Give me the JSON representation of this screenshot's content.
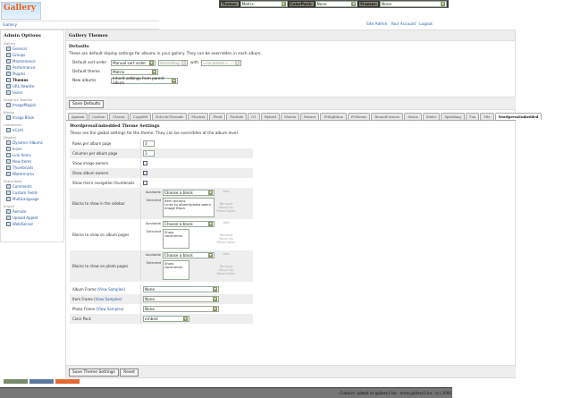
{
  "topbar": {
    "theme_label": "Theme:",
    "theme_value": "Matrix",
    "colorpack_label": "ColorPack:",
    "colorpack_value": "None",
    "frames_label": "Frames:",
    "frames_value": "None"
  },
  "logo_text": "Gallery",
  "breadcrumb": "Gallery",
  "user_links": [
    "Site Admin",
    "Your Account",
    "Logout"
  ],
  "sidebar": {
    "title": "Admin Options",
    "groups": [
      {
        "label": "Gallery",
        "items": [
          {
            "label": "General"
          },
          {
            "label": "Groups"
          },
          {
            "label": "Maintenance"
          },
          {
            "label": "Performance"
          },
          {
            "label": "Plugins"
          },
          {
            "label": "Themes",
            "current": true
          },
          {
            "label": "URL Rewrite"
          },
          {
            "label": "Users"
          }
        ]
      },
      {
        "label": "Graphics Toolkits",
        "items": [
          {
            "label": "ImageMagick"
          }
        ]
      },
      {
        "label": "Blocks",
        "items": [
          {
            "label": "Image Block"
          }
        ]
      },
      {
        "label": "Commerce",
        "items": [
          {
            "label": "eCard"
          }
        ]
      },
      {
        "label": "Display",
        "items": [
          {
            "label": "Dynamic Albums"
          },
          {
            "label": "Icons"
          },
          {
            "label": "Link Items"
          },
          {
            "label": "New Items"
          },
          {
            "label": "Thumbnails"
          },
          {
            "label": "Watermarks"
          }
        ]
      },
      {
        "label": "Extra Data",
        "items": [
          {
            "label": "Comments"
          },
          {
            "label": "Custom Fields"
          },
          {
            "label": "MultiLanguage"
          }
        ]
      },
      {
        "label": "Import",
        "items": [
          {
            "label": "Remote"
          },
          {
            "label": "Upload Applet"
          },
          {
            "label": "Web/Server"
          }
        ]
      }
    ]
  },
  "main": {
    "title": "Gallery Themes",
    "defaults": {
      "heading": "Defaults",
      "description": "These are default display settings for albums in your gallery. They can be overridden in each album.",
      "sort_label": "Default sort order",
      "sort_value": "Manual sort order",
      "sort_dir": "Ascending",
      "with_label": "with",
      "with_value": "« no preset »",
      "theme_label": "Default theme",
      "theme_value": "Matrix",
      "new_albums_label": "New albums",
      "new_albums_value": "Inherit settings from parent album",
      "save_button": "Save Defaults"
    },
    "tabs": [
      "Ajaxian",
      "Carbon",
      "Classic",
      "Copyleft",
      "EclecticThreads",
      "Floatrix",
      "Fluid",
      "ForSale",
      "G1",
      "Hybrid",
      "Matrix",
      "Nature",
      "PGlightbox",
      "PGtheme",
      "RoundCorners",
      "Siriux",
      "Slider",
      "Splatfang",
      "Tun",
      "Tile",
      "WordpressEmbedded"
    ],
    "active_tab": "WordpressEmbedded",
    "settings": {
      "heading": "WordpressEmbedded Theme Settings",
      "description": "These are the global settings for the theme. They can be overridden at the album level.",
      "rows_label": "Rows per album page",
      "rows_value": "3",
      "cols_label": "Columns per album page",
      "cols_value": "3",
      "image_owners_label": "Show image owners",
      "image_owners": false,
      "album_owners_label": "Show album owners",
      "album_owners": true,
      "micro_nav_label": "Show micro navigation thumbnails",
      "micro_nav": false,
      "available_label": "Available",
      "selected_label": "Selected",
      "choose": "Choose a block",
      "add": "Add",
      "remove": "Remove",
      "move_up": "Move Up",
      "move_down": "Move Down",
      "sidebar_blocks_label": "Blocks to show in the sidebar",
      "sidebar_blocks": [
        "Item actions",
        "Links to album/photo peers",
        "Image Block"
      ],
      "album_blocks_label": "Blocks to show on album pages",
      "album_blocks": [
        "Show comments"
      ],
      "photo_blocks_label": "Blocks to show on photo pages",
      "photo_blocks": [
        "Show comments"
      ],
      "album_frame_label": "Album Frame",
      "item_frame_label": "Item Frame",
      "photo_frame_label": "Photo Frame",
      "view_samples": "View Samples",
      "album_frame": "None",
      "item_frame": "None",
      "photo_frame": "None",
      "color_pack_label": "Color Pack",
      "color_pack": "embed",
      "save_button": "Save Theme Settings",
      "reset_button": "Reset"
    }
  },
  "badges": [
    "Valid XHTML",
    "Gallery 2",
    "Gallery 2"
  ],
  "footer": "Contact: admin at gallery2.hu - www.gallery2.hu - (c) 2006"
}
